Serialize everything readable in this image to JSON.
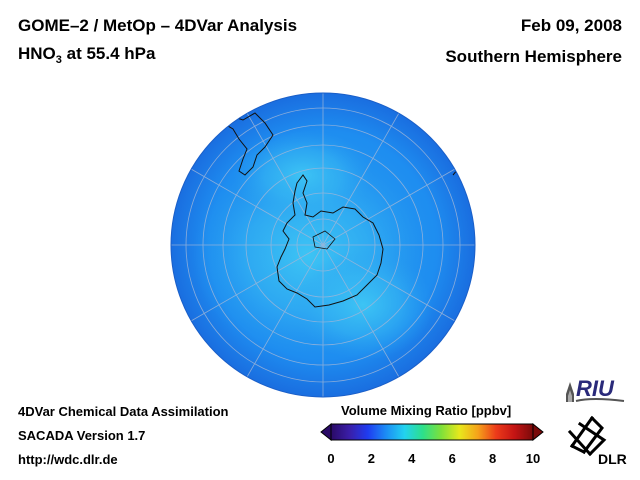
{
  "header": {
    "title": "GOME–2 / MetOp – 4DVar Analysis",
    "species_main": "HNO",
    "species_sub": "3",
    "species_rest": " at 55.4 hPa",
    "date": "Feb 09, 2008",
    "hemisphere": "Southern Hemisphere"
  },
  "footer": {
    "line1": "4DVar Chemical Data Assimilation",
    "line2": "SACADA Version 1.7",
    "line3": "http://wdc.dlr.de"
  },
  "colorbar": {
    "title": "Volume Mixing Ratio [ppbv]",
    "ticks": [
      "0",
      "2",
      "4",
      "6",
      "8",
      "10"
    ],
    "min": 0,
    "max": 10,
    "colors": [
      "#2a0a66",
      "#3a1ea8",
      "#1f3cf0",
      "#1c8df5",
      "#22d2f0",
      "#2de08a",
      "#7ee03a",
      "#e8e81c",
      "#f5a21a",
      "#ec3a1a",
      "#c41414",
      "#7a0a0a"
    ]
  },
  "map": {
    "projection": "orthographic, south pole centered",
    "background_color": "#1f8bf0",
    "field_range_ppbv": [
      2.5,
      4.0
    ]
  },
  "logos": {
    "riu": "RIU",
    "dlr": "DLR"
  }
}
